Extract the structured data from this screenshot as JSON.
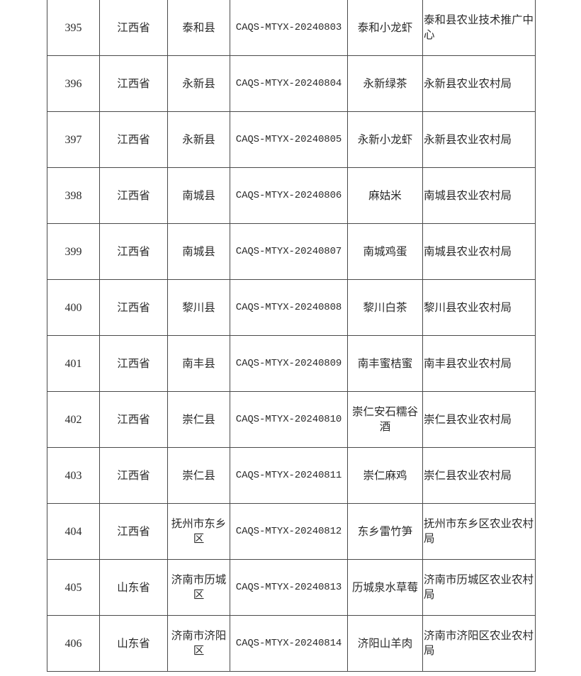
{
  "rows": [
    {
      "no": "395",
      "province": "江西省",
      "county": "泰和县",
      "code": "CAQS-MTYX-20240803",
      "product": "泰和小龙虾",
      "unit": "泰和县农业技术推广中心"
    },
    {
      "no": "396",
      "province": "江西省",
      "county": "永新县",
      "code": "CAQS-MTYX-20240804",
      "product": "永新绿茶",
      "unit": "永新县农业农村局"
    },
    {
      "no": "397",
      "province": "江西省",
      "county": "永新县",
      "code": "CAQS-MTYX-20240805",
      "product": "永新小龙虾",
      "unit": "永新县农业农村局"
    },
    {
      "no": "398",
      "province": "江西省",
      "county": "南城县",
      "code": "CAQS-MTYX-20240806",
      "product": "麻姑米",
      "unit": "南城县农业农村局"
    },
    {
      "no": "399",
      "province": "江西省",
      "county": "南城县",
      "code": "CAQS-MTYX-20240807",
      "product": "南城鸡蛋",
      "unit": "南城县农业农村局"
    },
    {
      "no": "400",
      "province": "江西省",
      "county": "黎川县",
      "code": "CAQS-MTYX-20240808",
      "product": "黎川白茶",
      "unit": "黎川县农业农村局"
    },
    {
      "no": "401",
      "province": "江西省",
      "county": "南丰县",
      "code": "CAQS-MTYX-20240809",
      "product": "南丰蜜桔蜜",
      "unit": "南丰县农业农村局"
    },
    {
      "no": "402",
      "province": "江西省",
      "county": "崇仁县",
      "code": "CAQS-MTYX-20240810",
      "product": "崇仁安石糯谷酒",
      "unit": "崇仁县农业农村局"
    },
    {
      "no": "403",
      "province": "江西省",
      "county": "崇仁县",
      "code": "CAQS-MTYX-20240811",
      "product": "崇仁麻鸡",
      "unit": "崇仁县农业农村局"
    },
    {
      "no": "404",
      "province": "江西省",
      "county": "抚州市东乡区",
      "code": "CAQS-MTYX-20240812",
      "product": "东乡雷竹笋",
      "unit": "抚州市东乡区农业农村局"
    },
    {
      "no": "405",
      "province": "山东省",
      "county": "济南市历城区",
      "code": "CAQS-MTYX-20240813",
      "product": "历城泉水草莓",
      "unit": "济南市历城区农业农村局"
    },
    {
      "no": "406",
      "province": "山东省",
      "county": "济南市济阳区",
      "code": "CAQS-MTYX-20240814",
      "product": "济阳山羊肉",
      "unit": "济南市济阳区农业农村局"
    }
  ]
}
